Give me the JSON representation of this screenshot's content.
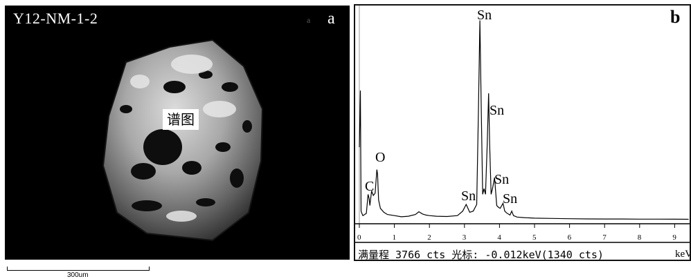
{
  "sem": {
    "sample_id": "Y12-NM-1-2",
    "panel_letter": "a",
    "panel_letter_faint": "a",
    "spectrum_callout": "谱图",
    "scalebar_label": "300um"
  },
  "eds": {
    "panel_letter": "b",
    "x_tick_labels": [
      "0",
      "1",
      "2",
      "3",
      "4",
      "5",
      "6",
      "7",
      "8",
      "9"
    ],
    "x_unit": "keV",
    "status": "满量程 3766 cts 光标: -0.012keV(1340 cts)",
    "peak_labels": {
      "c": "C",
      "o": "O",
      "sn1": "Sn",
      "sn2": "Sn",
      "sn3": "Sn",
      "sn4": "Sn",
      "sn5": "Sn"
    }
  },
  "chart_data": {
    "type": "line",
    "xlabel": "keV",
    "ylabel": "",
    "xlim": [
      0,
      9.4
    ],
    "ylim": [
      0,
      3766
    ],
    "x_ticks": [
      0,
      1,
      2,
      3,
      4,
      5,
      6,
      7,
      8,
      9
    ],
    "series": [
      {
        "x": [
          0.0,
          0.03,
          0.05,
          0.08,
          0.1,
          0.15,
          0.2,
          0.25,
          0.28,
          0.3,
          0.35,
          0.4,
          0.45,
          0.5,
          0.52,
          0.55,
          0.6,
          0.7,
          0.8,
          1.0,
          1.2,
          1.4,
          1.6,
          1.7,
          1.8,
          1.9,
          2.0,
          2.2,
          2.5,
          2.8,
          2.95,
          3.05,
          3.15,
          3.25,
          3.35,
          3.4,
          3.44,
          3.48,
          3.52,
          3.56,
          3.6,
          3.65,
          3.69,
          3.72,
          3.76,
          3.8,
          3.86,
          3.92,
          3.97,
          4.02,
          4.1,
          4.15,
          4.2,
          4.3,
          4.35,
          4.4,
          4.5,
          4.7,
          5.0,
          5.5,
          6.0,
          6.5,
          7.0,
          7.5,
          8.0,
          8.5,
          9.0,
          9.4
        ],
        "y": [
          1340,
          2350,
          200,
          150,
          120,
          140,
          160,
          500,
          420,
          300,
          560,
          480,
          520,
          940,
          860,
          400,
          250,
          180,
          140,
          120,
          100,
          110,
          140,
          190,
          150,
          130,
          120,
          110,
          105,
          120,
          200,
          320,
          180,
          200,
          320,
          2000,
          3600,
          2000,
          500,
          600,
          500,
          1400,
          2300,
          1400,
          500,
          600,
          800,
          300,
          270,
          250,
          340,
          200,
          170,
          130,
          200,
          120,
          95,
          85,
          75,
          70,
          65,
          62,
          60,
          60,
          58,
          58,
          56,
          55
        ]
      }
    ],
    "annotations": [
      {
        "text": "C",
        "x": 0.27,
        "y": 500
      },
      {
        "text": "O",
        "x": 0.52,
        "y": 940
      },
      {
        "text": "Sn",
        "x": 3.05,
        "y": 320
      },
      {
        "text": "Sn",
        "x": 3.44,
        "y": 3600
      },
      {
        "text": "Sn",
        "x": 3.69,
        "y": 2300
      },
      {
        "text": "Sn",
        "x": 3.92,
        "y": 800
      },
      {
        "text": "Sn",
        "x": 4.15,
        "y": 340
      }
    ]
  }
}
